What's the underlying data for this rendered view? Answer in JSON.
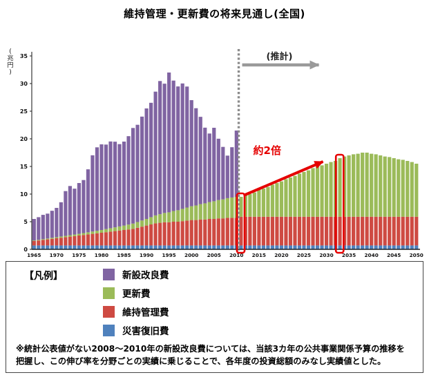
{
  "chart_data": {
    "type": "bar",
    "stacked": true,
    "title": "維持管理・更新費の将来見通し(全国)",
    "ylabel": "(兆円)",
    "x_start": 1965,
    "x_end": 2050,
    "x_ticks": [
      1965,
      1970,
      1975,
      1980,
      1985,
      1990,
      1995,
      2000,
      2005,
      2010,
      2015,
      2020,
      2025,
      2030,
      2035,
      2040,
      2045,
      2050
    ],
    "y_ticks": [
      0,
      5,
      10,
      15,
      20,
      25,
      30,
      35
    ],
    "ylim": [
      0,
      35
    ],
    "estimate_boundary_year": 2011,
    "highlight_years": [
      2011,
      2033
    ],
    "annotations": {
      "estimate_label": "(推計)",
      "double_label": "約2倍"
    },
    "series": [
      {
        "name": "災害復旧費",
        "color": "#4F81BD",
        "values": [
          0.7,
          0.7,
          0.7,
          0.7,
          0.7,
          0.7,
          0.7,
          0.7,
          0.7,
          0.7,
          0.7,
          0.7,
          0.7,
          0.7,
          0.7,
          0.7,
          0.7,
          0.7,
          0.7,
          0.7,
          0.7,
          0.7,
          0.7,
          0.7,
          0.7,
          0.7,
          0.7,
          0.7,
          0.7,
          0.7,
          0.7,
          0.7,
          0.7,
          0.7,
          0.7,
          0.7,
          0.7,
          0.7,
          0.7,
          0.7,
          0.7,
          0.7,
          0.7,
          0.7,
          0.7,
          0.7,
          0.7,
          0.7,
          0.7,
          0.7,
          0.7,
          0.7,
          0.7,
          0.7,
          0.7,
          0.7,
          0.7,
          0.7,
          0.7,
          0.7,
          0.7,
          0.7,
          0.7,
          0.7,
          0.7,
          0.7,
          0.7,
          0.7,
          0.7,
          0.7,
          0.7,
          0.7,
          0.7,
          0.7,
          0.7,
          0.7,
          0.7,
          0.7,
          0.7,
          0.7,
          0.7,
          0.7,
          0.7,
          0.7,
          0.7,
          0.7
        ]
      },
      {
        "name": "維持管理費",
        "color": "#CE4A42",
        "values": [
          0.8,
          0.9,
          1.0,
          1.1,
          1.2,
          1.3,
          1.4,
          1.5,
          1.6,
          1.7,
          1.8,
          1.9,
          2.0,
          2.1,
          2.2,
          2.3,
          2.4,
          2.5,
          2.6,
          2.7,
          2.8,
          2.9,
          3.0,
          3.2,
          3.4,
          3.6,
          3.8,
          4.0,
          4.1,
          4.2,
          4.2,
          4.3,
          4.3,
          4.4,
          4.5,
          4.6,
          4.6,
          4.7,
          4.7,
          4.8,
          4.8,
          4.9,
          4.9,
          5.0,
          5.0,
          5.0,
          5.2,
          5.2,
          5.2,
          5.2,
          5.2,
          5.2,
          5.2,
          5.2,
          5.2,
          5.2,
          5.2,
          5.2,
          5.2,
          5.2,
          5.2,
          5.2,
          5.2,
          5.2,
          5.2,
          5.2,
          5.2,
          5.2,
          5.2,
          5.2,
          5.2,
          5.2,
          5.2,
          5.2,
          5.2,
          5.2,
          5.2,
          5.2,
          5.2,
          5.2,
          5.2,
          5.2,
          5.2,
          5.2,
          5.2,
          5.2
        ]
      },
      {
        "name": "更新費",
        "color": "#9BBB59",
        "values": [
          0.1,
          0.12,
          0.14,
          0.16,
          0.18,
          0.2,
          0.22,
          0.24,
          0.26,
          0.28,
          0.3,
          0.34,
          0.38,
          0.42,
          0.46,
          0.5,
          0.56,
          0.62,
          0.68,
          0.74,
          0.8,
          0.88,
          0.96,
          1.04,
          1.12,
          1.2,
          1.32,
          1.44,
          1.56,
          1.68,
          1.8,
          1.94,
          2.08,
          2.22,
          2.36,
          2.5,
          2.64,
          2.78,
          2.92,
          3.06,
          3.2,
          3.32,
          3.44,
          3.56,
          3.68,
          3.8,
          3.6,
          3.9,
          4.1,
          4.4,
          4.9,
          5.1,
          5.4,
          5.8,
          6.1,
          6.4,
          6.8,
          7.1,
          7.4,
          7.8,
          8.1,
          8.4,
          8.8,
          9.1,
          9.3,
          9.6,
          9.9,
          10.1,
          10.6,
          10.9,
          11.1,
          11.3,
          11.4,
          11.6,
          11.6,
          11.4,
          11.3,
          11.1,
          10.9,
          10.8,
          10.6,
          10.4,
          10.3,
          10.1,
          9.9,
          9.6
        ]
      },
      {
        "name": "新設改良費",
        "color": "#8064A2",
        "values": [
          3.9,
          4.1,
          4.4,
          4.5,
          4.9,
          5.3,
          6.2,
          8.1,
          8.9,
          8.3,
          9.2,
          9.6,
          11.4,
          13.8,
          15.1,
          15.5,
          15.3,
          15.7,
          15.5,
          14.9,
          15.2,
          16.0,
          17.3,
          17.6,
          18.8,
          20.0,
          20.7,
          22.4,
          24.1,
          23.4,
          25.3,
          23.6,
          22.4,
          22.7,
          21.9,
          19.2,
          17.6,
          15.8,
          13.7,
          12.4,
          13.3,
          11.1,
          9.5,
          7.7,
          9.1,
          12.0,
          0,
          0,
          0,
          0,
          0,
          0,
          0,
          0,
          0,
          0,
          0,
          0,
          0,
          0,
          0,
          0,
          0,
          0,
          0,
          0,
          0,
          0,
          0,
          0,
          0,
          0,
          0,
          0,
          0,
          0,
          0,
          0,
          0,
          0,
          0,
          0,
          0,
          0,
          0,
          0
        ]
      }
    ]
  },
  "legend": {
    "heading": "【凡例】",
    "items": [
      {
        "label": "新設改良費",
        "color": "#8064A2"
      },
      {
        "label": "更新費",
        "color": "#9BBB59"
      },
      {
        "label": "維持管理費",
        "color": "#CE4A42"
      },
      {
        "label": "災害復旧費",
        "color": "#4F81BD"
      }
    ]
  },
  "footnote": "※統計公表値がない2008〜2010年の新設改良費については、当該3カ年の公共事業関係予算の推移を把握し、この伸び率を分野ごとの実績に乗じることで、各年度の投資総額のみなし実績値とした。"
}
